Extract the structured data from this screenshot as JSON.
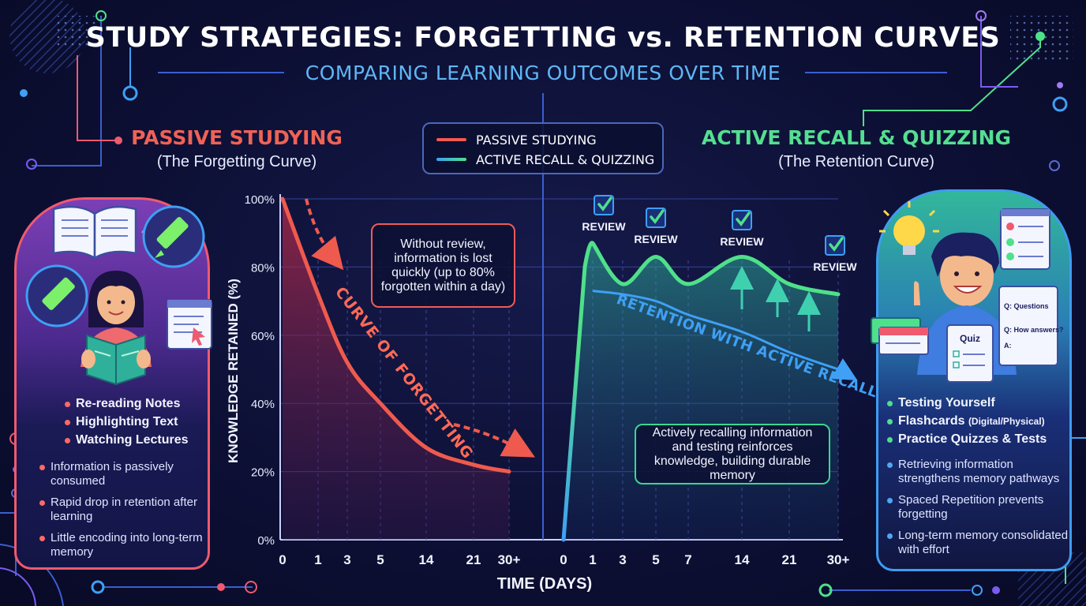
{
  "header": {
    "title": "STUDY STRATEGIES: FORGETTING vs. RETENTION CURVES",
    "subtitle": "COMPARING LEARNING OUTCOMES OVER TIME"
  },
  "passive": {
    "title": "PASSIVE STUDYING",
    "subtitle": "(The Forgetting Curve)",
    "methods": [
      "Re-reading Notes",
      "Highlighting Text",
      "Watching Lectures"
    ],
    "effects": [
      "Information is passively consumed",
      "Rapid drop in retention after learning",
      "Little encoding into long-term memory"
    ],
    "curve_label": "CURVE OF FORGETTING",
    "callout": "Without review, information is lost quickly (up to 80% forgotten within a day)"
  },
  "active": {
    "title": "ACTIVE RECALL & QUIZZING",
    "subtitle": "(The Retention Curve)",
    "methods": [
      "Testing Yourself",
      "Flashcards",
      "Practice Quizzes & Tests"
    ],
    "methods_suffix": "(Digital/Physical)",
    "effects": [
      "Retrieving information strengthens memory pathways",
      "Spaced Repetition prevents forgetting",
      "Long-term memory consolidated with effort"
    ],
    "curve_label": "RETENTION WITH ACTIVE RECALL",
    "callout": "Actively recalling information and testing reinforces knowledge, building durable memory",
    "review_label": "REVIEW",
    "quiz_card": {
      "title": "Quiz",
      "q1": "Q: Questions",
      "q2": "Q: How answers?",
      "a": "A:"
    }
  },
  "legend": {
    "passive": "PASSIVE STUDYING",
    "active": "ACTIVE RECALL & QUIZZING"
  },
  "colors": {
    "passive": "#ef5a4e",
    "active_start": "#3fa0f5",
    "active_end": "#4fe08a",
    "accent_blue": "#5fb6f4"
  },
  "chart_data": {
    "type": "line",
    "xlabel": "TIME (DAYS)",
    "ylabel": "KNOWLEDGE RETAINED (%)",
    "ylim": [
      0,
      100
    ],
    "yticks": [
      "0%",
      "20%",
      "40%",
      "60%",
      "80%",
      "100%"
    ],
    "x_categories": [
      "0",
      "1",
      "3",
      "5",
      "14",
      "21",
      "30+"
    ],
    "active_x_categories": [
      "0",
      "1",
      "3",
      "5",
      "7",
      "14",
      "21",
      "30+"
    ],
    "grid": true,
    "legend_position": "top-center",
    "series": [
      {
        "name": "PASSIVE STUDYING",
        "x": [
          "0",
          "1",
          "3",
          "5",
          "14",
          "21",
          "30+"
        ],
        "y": [
          100,
          72,
          52,
          40,
          27,
          22,
          20
        ]
      },
      {
        "name": "ACTIVE RECALL & QUIZZING",
        "x": [
          "0",
          "1",
          "3",
          "5",
          "7",
          "14",
          "21",
          "30+"
        ],
        "y": [
          0,
          87,
          75,
          83,
          75,
          83,
          75,
          72
        ]
      },
      {
        "name": "RETENTION WITH ACTIVE RECALL",
        "x": [
          "0",
          "1",
          "3",
          "5",
          "7",
          "14",
          "21",
          "30+"
        ],
        "y": [
          0,
          73,
          72,
          70,
          66,
          61,
          55,
          50
        ]
      }
    ],
    "review_points": [
      "1",
      "5",
      "14",
      "30+"
    ]
  }
}
